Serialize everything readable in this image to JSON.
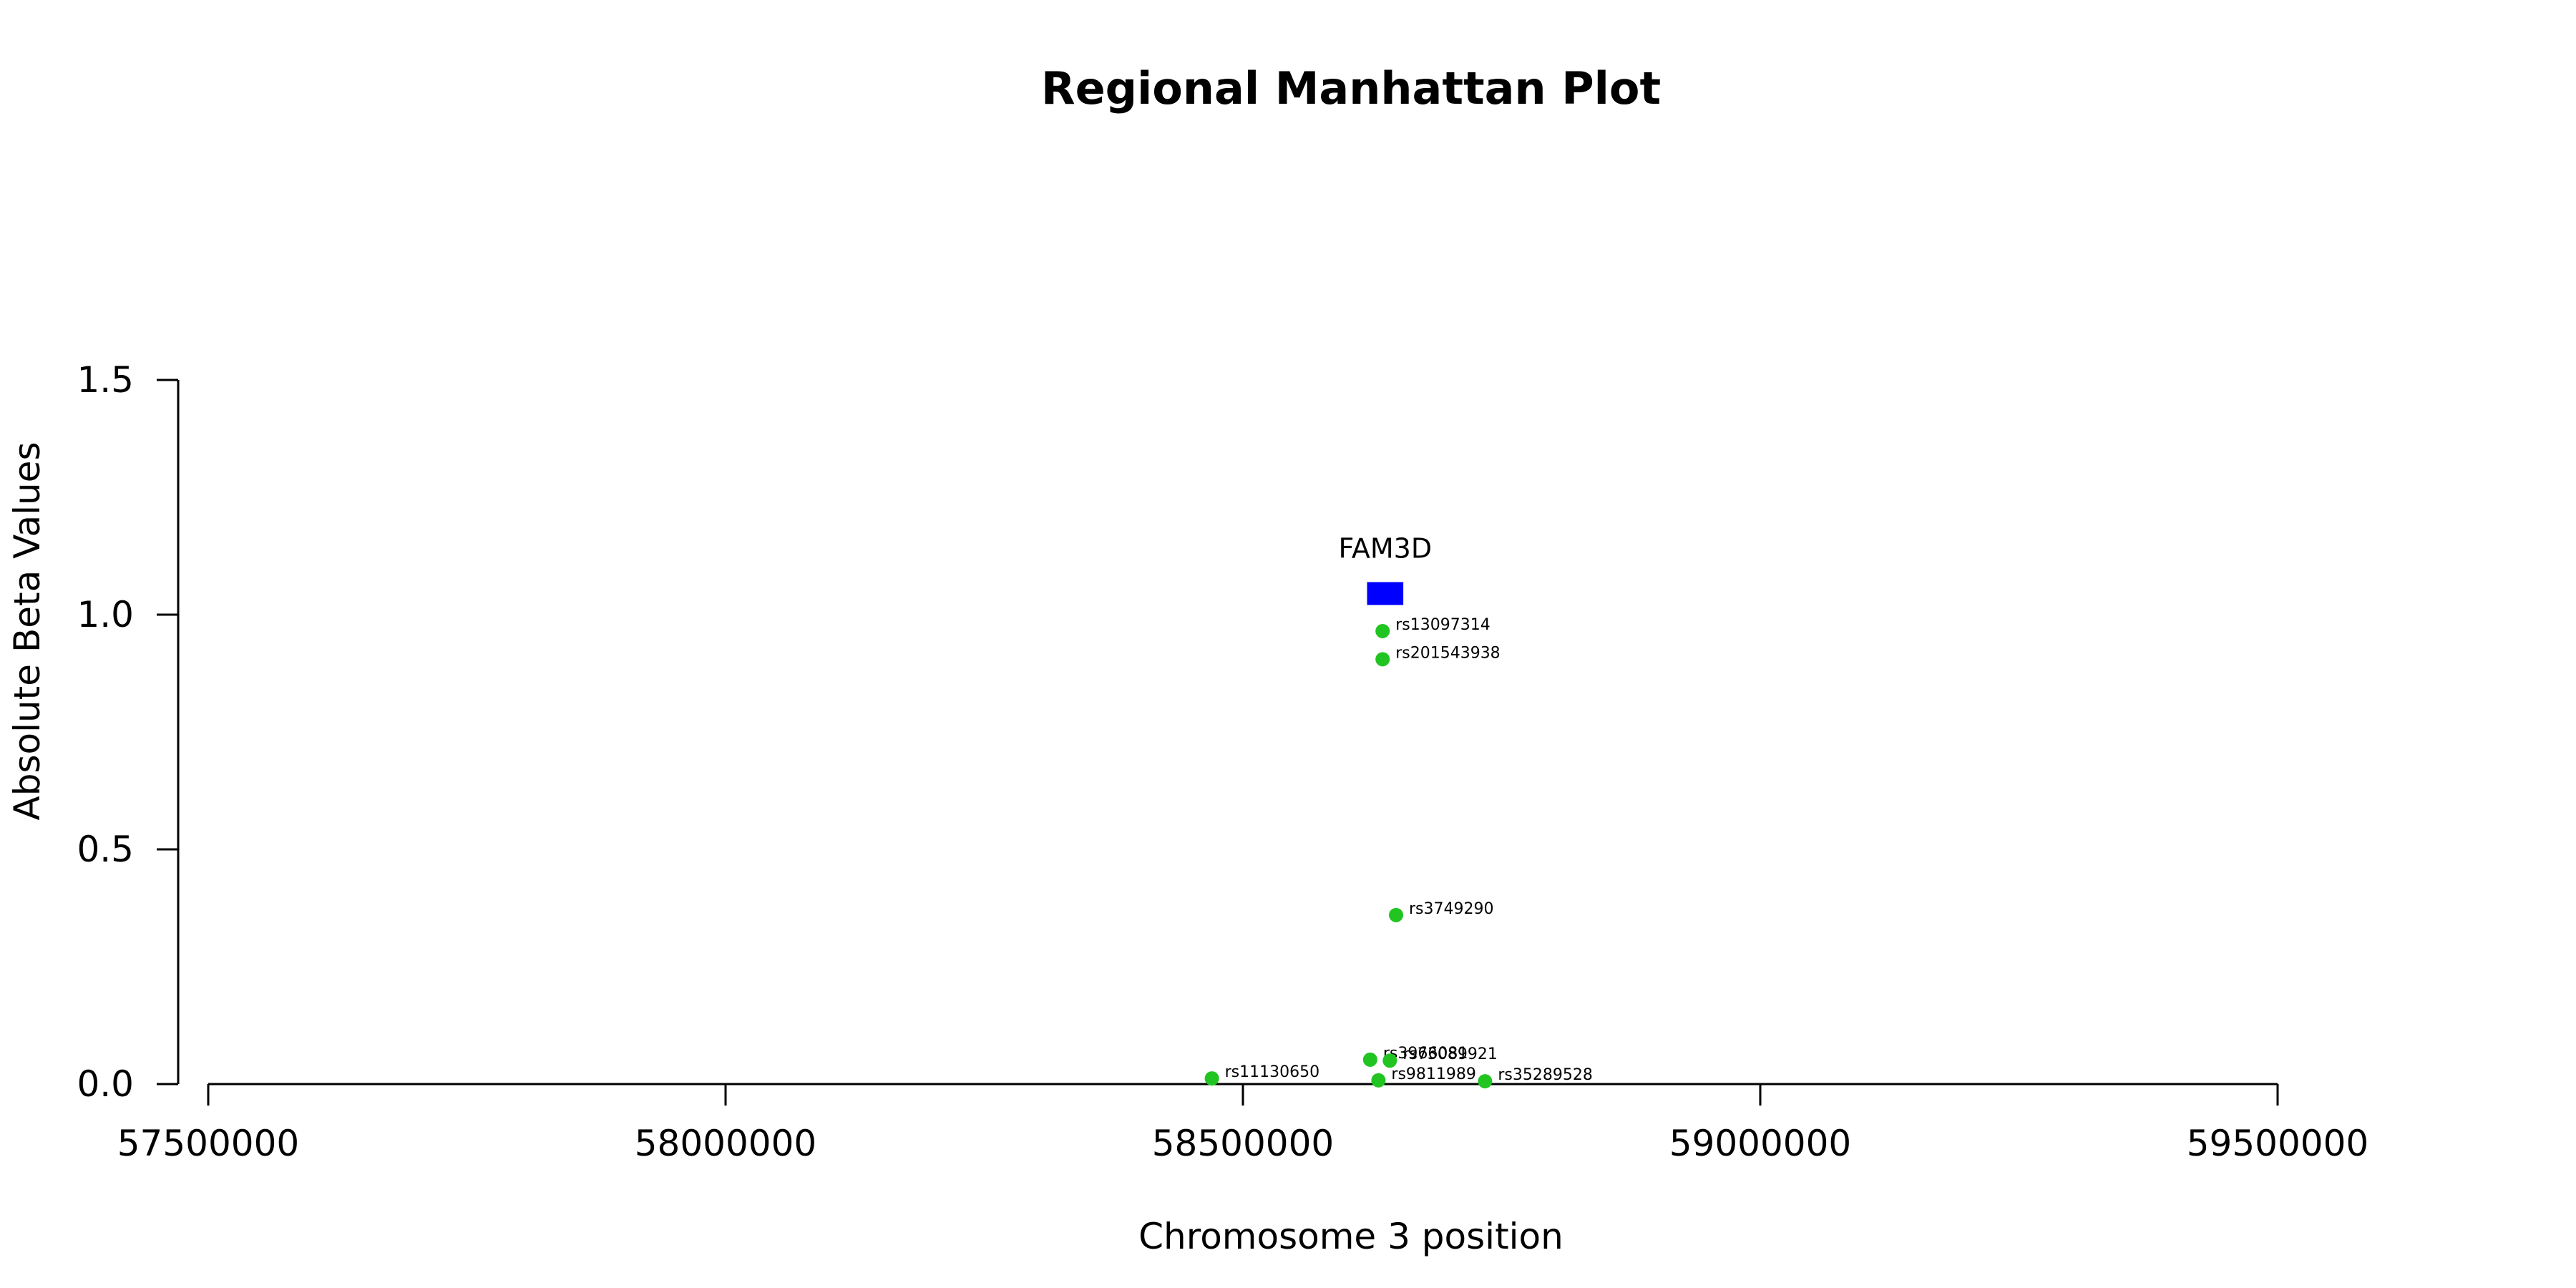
{
  "chart_data": {
    "type": "scatter",
    "title": "Regional Manhattan Plot",
    "xlabel": "Chromosome 3 position",
    "ylabel": "Absolute Beta Values",
    "xlim": [
      57500000,
      59500000
    ],
    "ylim": [
      0,
      1.5
    ],
    "x_ticks": [
      57500000,
      58000000,
      58500000,
      59000000,
      59500000
    ],
    "x_tick_labels": [
      "57500000",
      "58000000",
      "58500000",
      "59000000",
      "59500000"
    ],
    "y_ticks": [
      0,
      0.5,
      1,
      1.5
    ],
    "y_tick_labels": [
      "0.0",
      "0.5",
      "1.0",
      "1.5"
    ],
    "grid": false,
    "point_color": "#22c422",
    "gene_color": "#0000ff",
    "genes": [
      {
        "name": "FAM3D",
        "start": 58620000,
        "end": 58655000,
        "y": 1.045
      }
    ],
    "points": [
      {
        "label": "rs13097314",
        "x": 58635000,
        "y": 0.965
      },
      {
        "label": "rs201543938",
        "x": 58635000,
        "y": 0.905
      },
      {
        "label": "rs3749290",
        "x": 58648000,
        "y": 0.36
      },
      {
        "label": "rs3966081",
        "x": 58623000,
        "y": 0.052
      },
      {
        "label": "rs73089921",
        "x": 58642000,
        "y": 0.05
      },
      {
        "label": "rs11130650",
        "x": 58470000,
        "y": 0.012
      },
      {
        "label": "rs9811989",
        "x": 58631000,
        "y": 0.008
      },
      {
        "label": "rs35289528",
        "x": 58734000,
        "y": 0.006
      }
    ]
  }
}
